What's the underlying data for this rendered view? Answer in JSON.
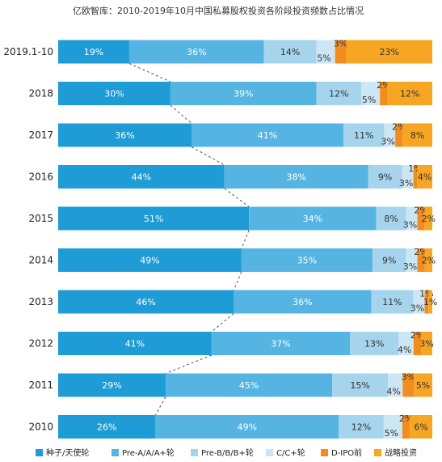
{
  "chart_data": {
    "type": "bar",
    "orientation": "horizontal",
    "stacked": true,
    "percent_stacked": true,
    "title": "亿欧智库：2010-2019年10月中国私募股权投资各阶段投资频数占比情况",
    "categories": [
      "2019.1-10",
      "2018",
      "2017",
      "2016",
      "2015",
      "2014",
      "2013",
      "2012",
      "2011",
      "2010"
    ],
    "series": [
      {
        "name": "种子/天使轮",
        "color": "#1F9BD5",
        "values": [
          19,
          30,
          36,
          44,
          51,
          49,
          46,
          41,
          29,
          26
        ]
      },
      {
        "name": "Pre-A/A/A+轮",
        "color": "#56B4E2",
        "values": [
          36,
          39,
          41,
          38,
          34,
          35,
          36,
          37,
          45,
          49
        ]
      },
      {
        "name": "Pre-B/B/B+轮",
        "color": "#A5D4EC",
        "values": [
          14,
          12,
          11,
          9,
          8,
          9,
          11,
          13,
          15,
          12
        ]
      },
      {
        "name": "C/C+轮",
        "color": "#CDE6F4",
        "values": [
          5,
          5,
          3,
          3,
          3,
          3,
          3,
          4,
          4,
          5
        ]
      },
      {
        "name": "D-IPO前",
        "color": "#F28C1E",
        "values": [
          3,
          2,
          2,
          1,
          2,
          2,
          1,
          2,
          3,
          2
        ]
      },
      {
        "name": "战略投资",
        "color": "#F6A623",
        "values": [
          23,
          12,
          8,
          4,
          2,
          2,
          1,
          3,
          5,
          6
        ]
      }
    ],
    "value_suffix": "%",
    "connector_lines": "dashed, between first-series ends of consecutive bars",
    "legend_position": "bottom"
  }
}
